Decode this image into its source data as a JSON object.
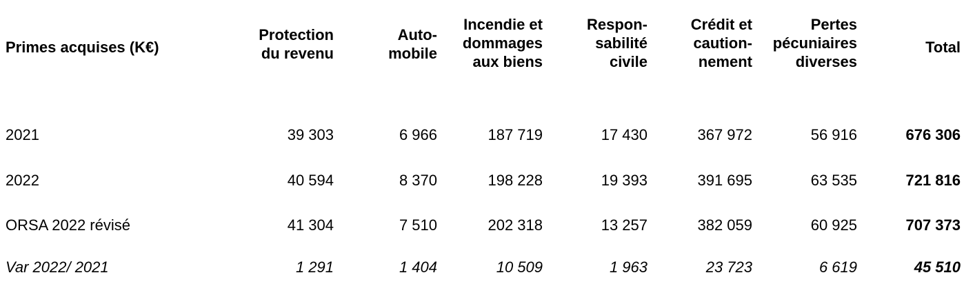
{
  "table": {
    "header_label": "Primes acquises (K€)",
    "columns": [
      "Protection\ndu revenu",
      "Auto-\nmobile",
      "Incendie et\ndommages\naux biens",
      "Respon-\nsabilité\ncivile",
      "Crédit et\ncaution-\nnement",
      "Pertes\npécuniaires\ndiverses",
      "Total"
    ],
    "rows": [
      {
        "label": "2021",
        "values": [
          "39 303",
          "6 966",
          "187 719",
          "17 430",
          "367 972",
          "56 916",
          "676 306"
        ]
      },
      {
        "label": "2022",
        "values": [
          "40 594",
          "8 370",
          "198 228",
          "19 393",
          "391 695",
          "63 535",
          "721 816"
        ]
      },
      {
        "label": "ORSA 2022 révisé",
        "values": [
          "41 304",
          "7 510",
          "202 318",
          "13 257",
          "382 059",
          "60 925",
          "707 373"
        ]
      },
      {
        "label": "Var 2022/ 2021",
        "values": [
          "1 291",
          "1 404",
          "10 509",
          "1 963",
          "23 723",
          "6 619",
          "45 510"
        ]
      }
    ]
  }
}
